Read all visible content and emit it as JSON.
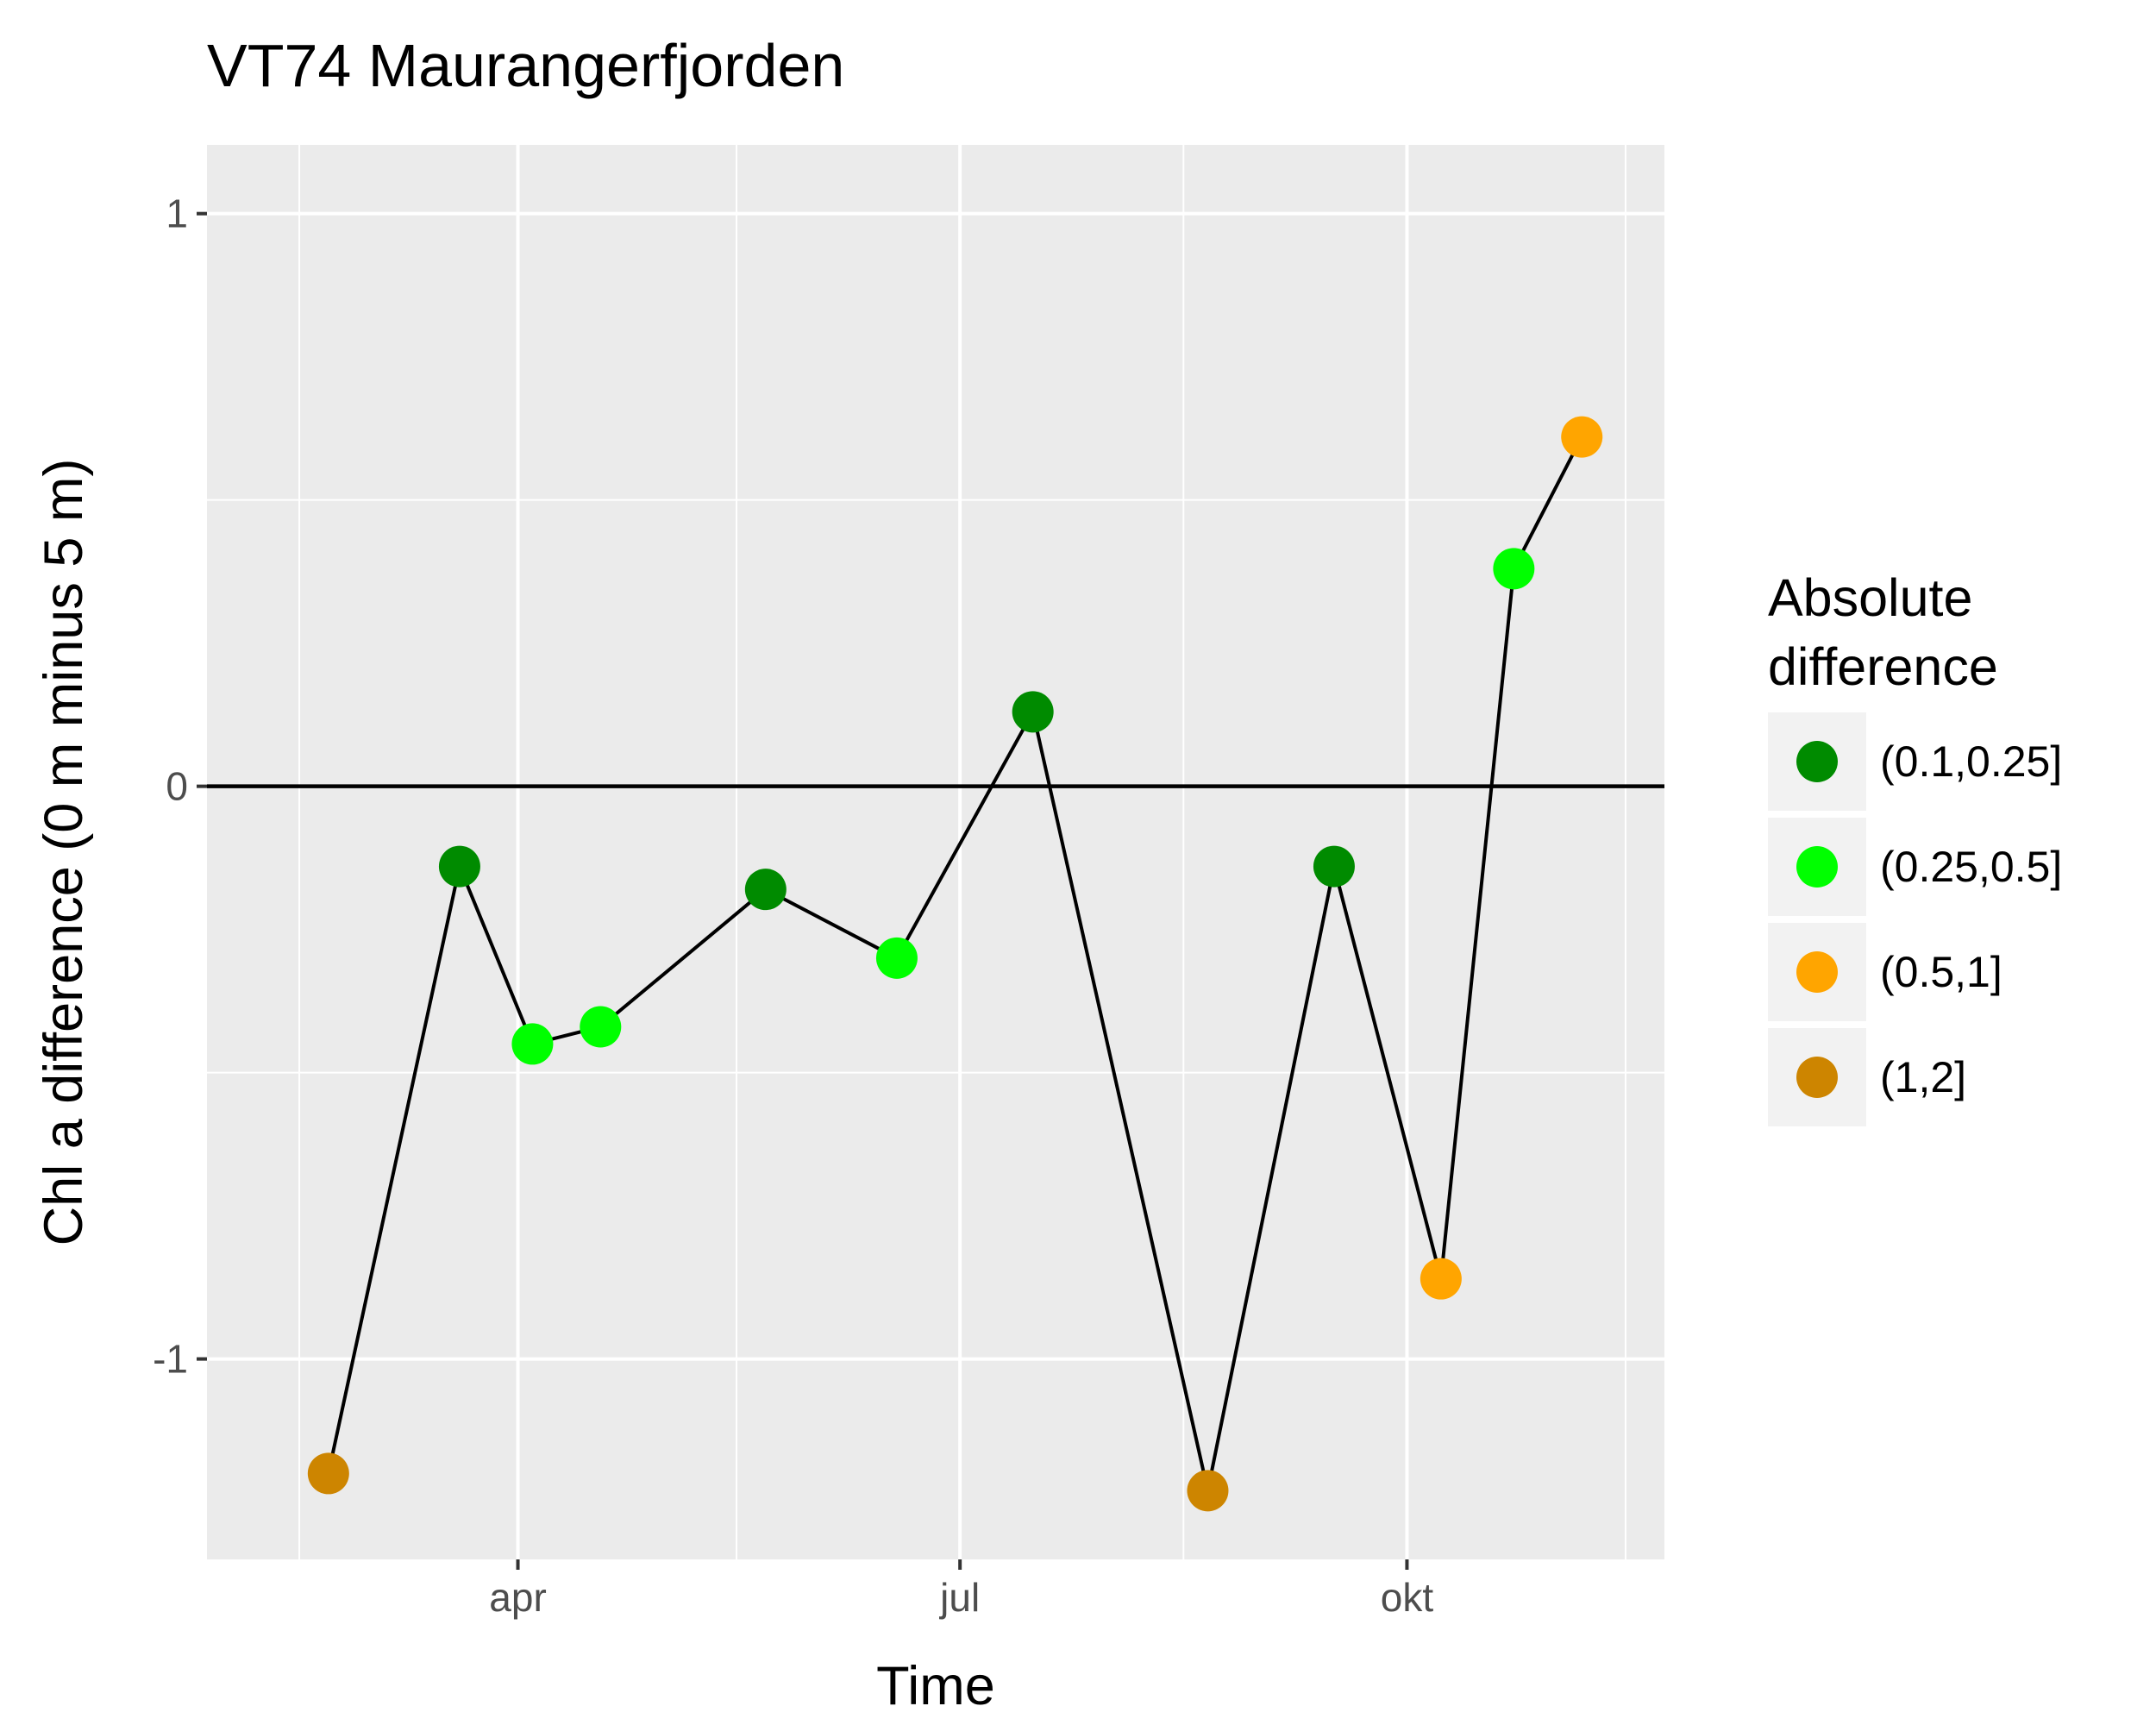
{
  "chart_data": {
    "type": "line",
    "title": "VT74 Maurangerfjorden",
    "xlabel": "Time",
    "ylabel": "Chl a difference (0 m minus 5 m)",
    "x_ticks": [
      {
        "label": "apr",
        "date": "2017-04-01"
      },
      {
        "label": "jul",
        "date": "2017-07-01"
      },
      {
        "label": "okt",
        "date": "2017-10-01"
      }
    ],
    "x_minor_dates": [
      "2017-02-15",
      "2017-05-16",
      "2017-08-16",
      "2017-11-15"
    ],
    "xlim": [
      "2017-01-27",
      "2017-11-23"
    ],
    "y_ticks": [
      -1,
      0,
      1
    ],
    "ylim": [
      -1.35,
      1.12
    ],
    "grid": true,
    "hline": 0,
    "legend": {
      "title_lines": [
        "Absolute",
        "difference"
      ],
      "position": "right",
      "entries": [
        {
          "label": "(0.1,0.25]",
          "color": "#008B00"
        },
        {
          "label": "(0.25,0.5]",
          "color": "#00FF00"
        },
        {
          "label": "(0.5,1]",
          "color": "#FFA500"
        },
        {
          "label": "(1,2]",
          "color": "#CD8500"
        }
      ]
    },
    "points": [
      {
        "date": "2017-02-21",
        "y": -1.2,
        "group": "(1,2]"
      },
      {
        "date": "2017-03-20",
        "y": -0.14,
        "group": "(0.1,0.25]"
      },
      {
        "date": "2017-04-04",
        "y": -0.45,
        "group": "(0.25,0.5]"
      },
      {
        "date": "2017-04-18",
        "y": -0.42,
        "group": "(0.25,0.5]"
      },
      {
        "date": "2017-05-22",
        "y": -0.18,
        "group": "(0.1,0.25]"
      },
      {
        "date": "2017-06-18",
        "y": -0.3,
        "group": "(0.25,0.5]"
      },
      {
        "date": "2017-07-16",
        "y": 0.13,
        "group": "(0.1,0.25]"
      },
      {
        "date": "2017-08-21",
        "y": -1.23,
        "group": "(1,2]"
      },
      {
        "date": "2017-09-16",
        "y": -0.14,
        "group": "(0.1,0.25]"
      },
      {
        "date": "2017-10-08",
        "y": -0.86,
        "group": "(0.5,1]"
      },
      {
        "date": "2017-10-23",
        "y": 0.38,
        "group": "(0.25,0.5]"
      },
      {
        "date": "2017-11-06",
        "y": 0.61,
        "group": "(0.5,1]"
      }
    ]
  }
}
